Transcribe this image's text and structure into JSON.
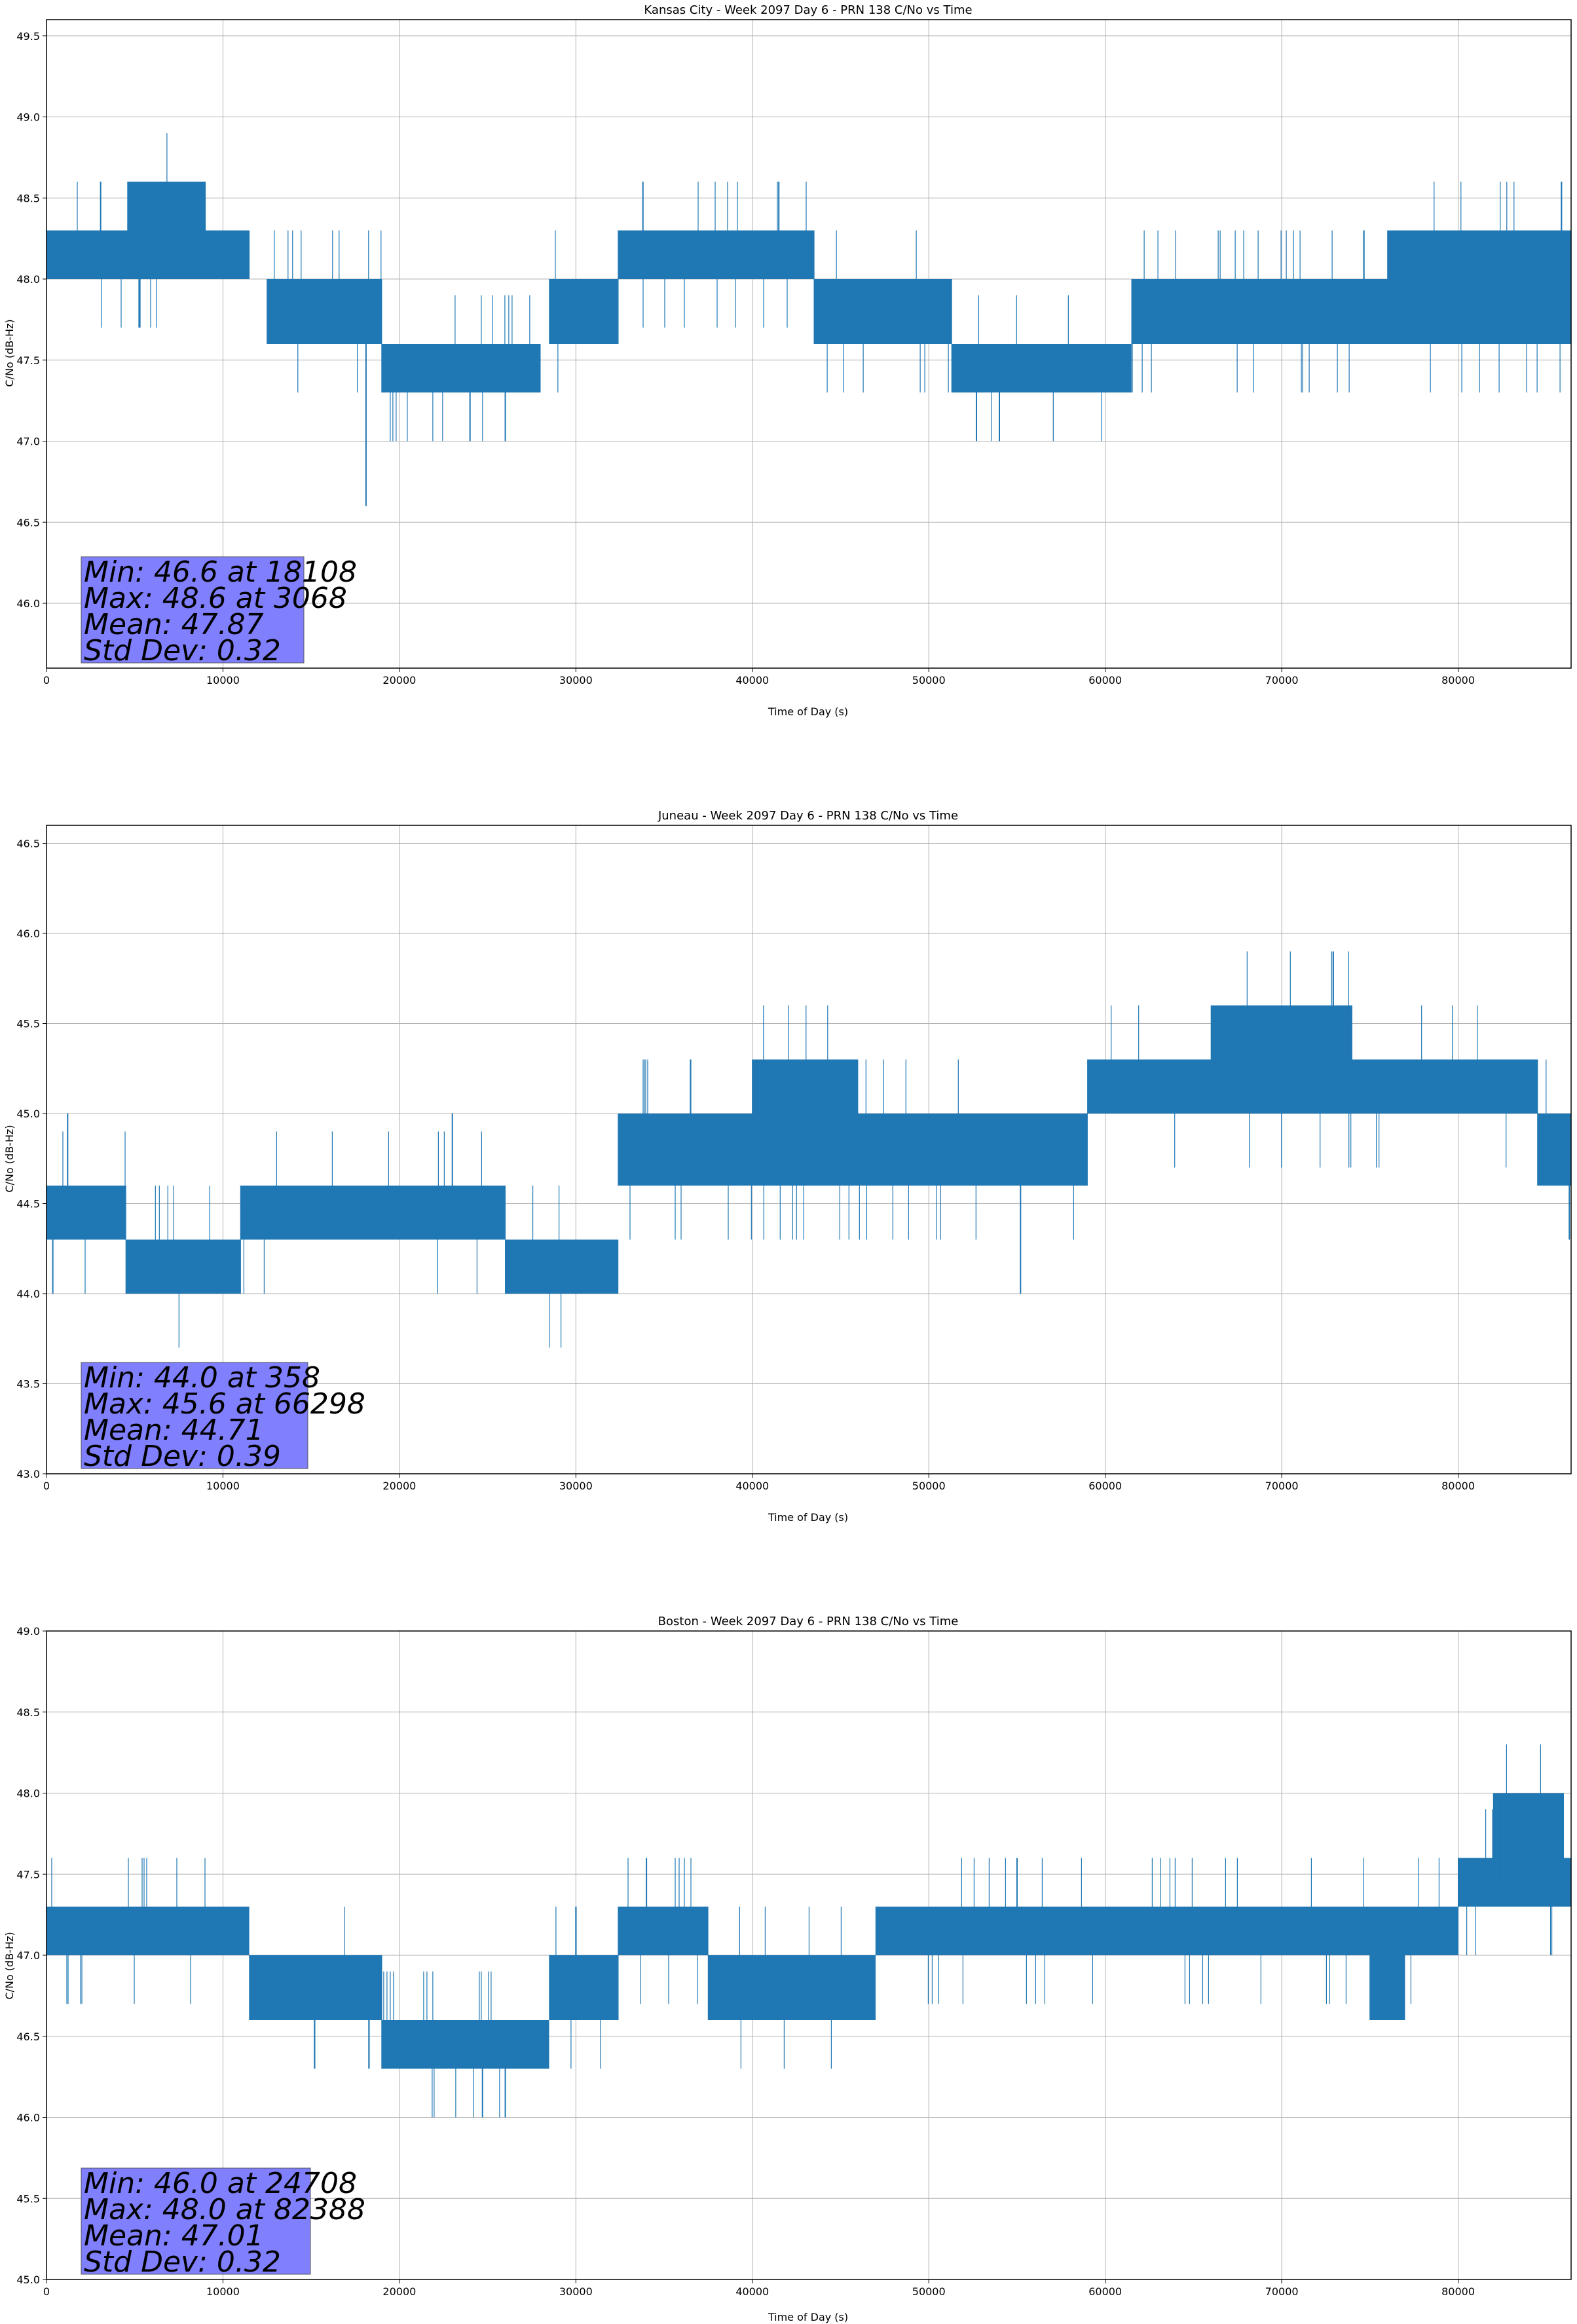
{
  "chart_data": [
    {
      "type": "line",
      "title": "Kansas City - Week 2097 Day 6 - PRN 138 C/No vs Time",
      "xlabel": "Time of Day (s)",
      "ylabel": "C/No (dB-Hz)",
      "xlim": [
        0,
        86400
      ],
      "ylim": [
        45.6,
        49.6
      ],
      "xticks": [
        0,
        10000,
        20000,
        30000,
        40000,
        50000,
        60000,
        70000,
        80000
      ],
      "yticks": [
        46.0,
        46.5,
        47.0,
        47.5,
        48.0,
        48.5,
        49.0,
        49.5
      ],
      "series_color": "#1f77b4",
      "step": 0.3,
      "segments": [
        {
          "x": [
            0,
            9000
          ],
          "base": 48.15,
          "lo": 48.0,
          "hi": 48.3
        },
        {
          "x": [
            4600,
            9000
          ],
          "base": 48.45,
          "lo": 48.3,
          "hi": 48.6
        },
        {
          "x": [
            9000,
            11500
          ],
          "base": 48.15,
          "lo": 48.0,
          "hi": 48.3
        },
        {
          "x": [
            12500,
            19000
          ],
          "base": 47.8,
          "lo": 47.6,
          "hi": 48.0
        },
        {
          "x": [
            19000,
            28000
          ],
          "base": 47.45,
          "lo": 47.3,
          "hi": 47.6
        },
        {
          "x": [
            28500,
            32400
          ],
          "base": 47.8,
          "lo": 47.6,
          "hi": 48.0
        },
        {
          "x": [
            32400,
            43500
          ],
          "base": 48.15,
          "lo": 48.0,
          "hi": 48.3
        },
        {
          "x": [
            43500,
            51300
          ],
          "base": 47.8,
          "lo": 47.6,
          "hi": 48.0
        },
        {
          "x": [
            51300,
            61500
          ],
          "base": 47.45,
          "lo": 47.3,
          "hi": 47.6
        },
        {
          "x": [
            61500,
            86400
          ],
          "base": 47.8,
          "lo": 47.6,
          "hi": 48.0
        },
        {
          "x": [
            76000,
            86400
          ],
          "base": 48.15,
          "lo": 48.0,
          "hi": 48.3
        }
      ],
      "spikes": [
        {
          "x": 18108,
          "y": 46.6
        },
        {
          "x": 3068,
          "y": 48.6
        },
        {
          "x": 24000,
          "y": 47.0
        },
        {
          "x": 26000,
          "y": 47.0
        },
        {
          "x": 52700,
          "y": 47.0
        },
        {
          "x": 54000,
          "y": 47.0
        },
        {
          "x": 33800,
          "y": 48.6
        },
        {
          "x": 41500,
          "y": 48.6
        }
      ],
      "stats": {
        "min": "Min: 46.6 at 18108",
        "max": "Max: 48.6 at 3068",
        "mean": "Mean: 47.87",
        "std": "Std Dev: 0.32"
      }
    },
    {
      "type": "line",
      "title": "Juneau - Week 2097 Day 6 - PRN 138 C/No vs Time",
      "xlabel": "Time of Day (s)",
      "ylabel": "C/No (dB-Hz)",
      "xlim": [
        0,
        86400
      ],
      "ylim": [
        43.0,
        46.6
      ],
      "xticks": [
        0,
        10000,
        20000,
        30000,
        40000,
        50000,
        60000,
        70000,
        80000
      ],
      "yticks": [
        43.0,
        43.5,
        44.0,
        44.5,
        45.0,
        45.5,
        46.0,
        46.5
      ],
      "series_color": "#1f77b4",
      "step": 0.3,
      "segments": [
        {
          "x": [
            0,
            4500
          ],
          "base": 44.45,
          "lo": 44.3,
          "hi": 44.6
        },
        {
          "x": [
            4500,
            11000
          ],
          "base": 44.15,
          "lo": 44.0,
          "hi": 44.3
        },
        {
          "x": [
            11000,
            26000
          ],
          "base": 44.45,
          "lo": 44.3,
          "hi": 44.6
        },
        {
          "x": [
            26000,
            32400
          ],
          "base": 44.15,
          "lo": 44.0,
          "hi": 44.3
        },
        {
          "x": [
            32400,
            39500
          ],
          "base": 44.8,
          "lo": 44.6,
          "hi": 45.0
        },
        {
          "x": [
            39500,
            59000
          ],
          "base": 44.8,
          "lo": 44.6,
          "hi": 45.0
        },
        {
          "x": [
            40000,
            46000
          ],
          "base": 45.15,
          "lo": 45.0,
          "hi": 45.3
        },
        {
          "x": [
            59000,
            84500
          ],
          "base": 45.15,
          "lo": 45.0,
          "hi": 45.3
        },
        {
          "x": [
            66000,
            74000
          ],
          "base": 45.45,
          "lo": 45.3,
          "hi": 45.6
        },
        {
          "x": [
            84500,
            86400
          ],
          "base": 44.8,
          "lo": 44.6,
          "hi": 45.0
        }
      ],
      "spikes": [
        {
          "x": 358,
          "y": 44.0
        },
        {
          "x": 66298,
          "y": 45.6
        },
        {
          "x": 1200,
          "y": 45.0
        },
        {
          "x": 23000,
          "y": 45.0
        },
        {
          "x": 55200,
          "y": 44.0
        },
        {
          "x": 86300,
          "y": 44.3
        }
      ],
      "stats": {
        "min": "Min: 44.0 at 358",
        "max": "Max: 45.6 at 66298",
        "mean": "Mean: 44.71",
        "std": "Std Dev: 0.39"
      }
    },
    {
      "type": "line",
      "title": "Boston - Week 2097 Day 6 - PRN 138 C/No vs Time",
      "xlabel": "Time of Day (s)",
      "ylabel": "C/No (dB-Hz)",
      "xlim": [
        0,
        86400
      ],
      "ylim": [
        45.0,
        49.0
      ],
      "xticks": [
        0,
        10000,
        20000,
        30000,
        40000,
        50000,
        60000,
        70000,
        80000
      ],
      "yticks": [
        45.0,
        45.5,
        46.0,
        46.5,
        47.0,
        47.5,
        48.0,
        48.5,
        49.0
      ],
      "series_color": "#1f77b4",
      "step": 0.3,
      "segments": [
        {
          "x": [
            0,
            11500
          ],
          "base": 47.15,
          "lo": 47.0,
          "hi": 47.3
        },
        {
          "x": [
            11500,
            19000
          ],
          "base": 46.8,
          "lo": 46.6,
          "hi": 47.0
        },
        {
          "x": [
            19000,
            28500
          ],
          "base": 46.45,
          "lo": 46.3,
          "hi": 46.6
        },
        {
          "x": [
            28500,
            32400
          ],
          "base": 46.8,
          "lo": 46.6,
          "hi": 47.0
        },
        {
          "x": [
            32400,
            37500
          ],
          "base": 47.15,
          "lo": 47.0,
          "hi": 47.3
        },
        {
          "x": [
            37500,
            47000
          ],
          "base": 46.8,
          "lo": 46.6,
          "hi": 47.0
        },
        {
          "x": [
            47000,
            80000
          ],
          "base": 47.15,
          "lo": 47.0,
          "hi": 47.3
        },
        {
          "x": [
            75000,
            77000
          ],
          "base": 46.8,
          "lo": 46.6,
          "hi": 47.0
        },
        {
          "x": [
            80000,
            86400
          ],
          "base": 47.45,
          "lo": 47.3,
          "hi": 47.6
        },
        {
          "x": [
            82000,
            86000
          ],
          "base": 47.8,
          "lo": 47.6,
          "hi": 48.0
        }
      ],
      "spikes": [
        {
          "x": 24708,
          "y": 46.0
        },
        {
          "x": 82388,
          "y": 48.0
        },
        {
          "x": 26000,
          "y": 46.0
        },
        {
          "x": 34000,
          "y": 47.6
        },
        {
          "x": 55000,
          "y": 47.6
        }
      ],
      "stats": {
        "min": "Min: 46.0 at 24708",
        "max": "Max: 48.0 at 82388",
        "mean": "Mean: 47.01",
        "std": "Std Dev: 0.32"
      }
    }
  ]
}
